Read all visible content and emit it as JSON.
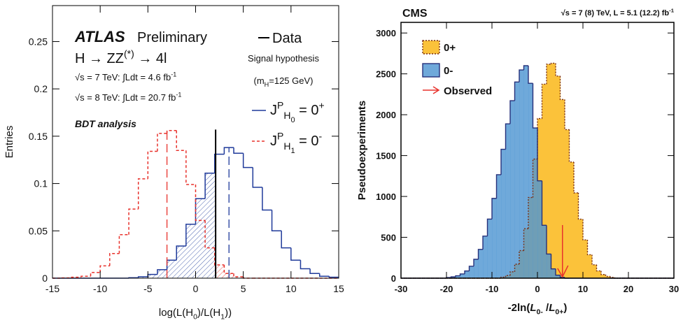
{
  "chart_data": [
    {
      "type": "histogram",
      "ylabel": "Entries",
      "xlabel": [
        {
          "text": "log(L(H"
        },
        {
          "text": "0",
          "pos": "sub"
        },
        {
          "text": ")/L(H"
        },
        {
          "text": "1",
          "pos": "sub"
        },
        {
          "text": "))"
        }
      ],
      "xlim": [
        -15,
        15
      ],
      "xticks": [
        -15,
        -10,
        -5,
        0,
        5,
        10,
        15
      ],
      "ylim": [
        0,
        0.288
      ],
      "yticks": [
        0,
        0.05,
        0.1,
        0.15,
        0.2,
        0.25
      ],
      "bins": [
        -15,
        -14,
        -13,
        -12,
        -11,
        -10,
        -9,
        -8,
        -7,
        -6,
        -5,
        -4,
        -3,
        -2,
        -1,
        0,
        1,
        2,
        3,
        4,
        5,
        6,
        7,
        8,
        9,
        10,
        11,
        12,
        13,
        14,
        15
      ],
      "series": [
        {
          "name": [
            {
              "text": "J"
            },
            {
              "text": "P",
              "pos": "sup"
            },
            {
              "text": "H",
              "pos": "sub"
            },
            {
              "text": "0",
              "pos": "subsub"
            },
            {
              "text": " = 0"
            },
            {
              "text": "+",
              "pos": "sup"
            }
          ],
          "color": "#1f3a9a",
          "dash": false,
          "hatch": "left",
          "median": 3.5,
          "values": [
            0,
            0,
            0,
            0,
            0,
            0,
            0,
            0,
            0.0005,
            0.0015,
            0.004,
            0.009,
            0.019,
            0.034,
            0.057,
            0.084,
            0.111,
            0.131,
            0.138,
            0.132,
            0.117,
            0.096,
            0.072,
            0.05,
            0.032,
            0.019,
            0.01,
            0.005,
            0.002,
            0.001
          ]
        },
        {
          "name": [
            {
              "text": "J"
            },
            {
              "text": "P",
              "pos": "sup"
            },
            {
              "text": "H",
              "pos": "sub"
            },
            {
              "text": "1",
              "pos": "subsub"
            },
            {
              "text": " = 0"
            },
            {
              "text": "-",
              "pos": "sup"
            }
          ],
          "color": "#e8322c",
          "dash": true,
          "hatch": "right",
          "median": -3.0,
          "values": [
            0,
            0.0003,
            0.001,
            0.002,
            0.006,
            0.013,
            0.026,
            0.046,
            0.073,
            0.105,
            0.134,
            0.153,
            0.156,
            0.135,
            0.099,
            0.061,
            0.032,
            0.014,
            0.005,
            0.0015,
            0,
            0,
            0,
            0,
            0,
            0,
            0,
            0,
            0,
            0
          ]
        }
      ],
      "observed": {
        "label": "Data",
        "x": 2.1,
        "height": 0.157,
        "color": "#000000"
      },
      "annotations": [
        [
          {
            "text": "ATLAS",
            "pos": "bolditalic"
          }
        ],
        [
          {
            "text": "Preliminary"
          }
        ],
        [
          {
            "text": "H → ZZ"
          },
          {
            "text": "(*)",
            "pos": "sup"
          },
          {
            "text": " → 4l"
          }
        ],
        [
          {
            "text": "√s = 7 TeV: ∫Ldt = 4.6 fb"
          },
          {
            "text": "-1",
            "pos": "sup"
          }
        ],
        [
          {
            "text": "√s = 8 TeV: ∫Ldt = 20.7 fb"
          },
          {
            "text": "-1",
            "pos": "sup"
          }
        ],
        [
          {
            "text": "BDT analysis",
            "pos": "bolditalic"
          }
        ],
        [
          {
            "text": "Signal hypothesis"
          }
        ],
        [
          {
            "text": "(m"
          },
          {
            "text": "H",
            "pos": "sub"
          },
          {
            "text": "=125 GeV)"
          }
        ]
      ]
    },
    {
      "type": "histogram",
      "ylabel": "Pseudoexperiments",
      "xlabel": [
        {
          "text": "-2ln("
        },
        {
          "text": "L",
          "pos": "italic"
        },
        {
          "text": "0-",
          "pos": "sub"
        },
        {
          "text": " /"
        },
        {
          "text": "L",
          "pos": "italic"
        },
        {
          "text": "0+",
          "pos": "sub"
        },
        {
          "text": ")"
        }
      ],
      "xlim": [
        -30,
        30
      ],
      "xticks": [
        -30,
        -20,
        -10,
        0,
        10,
        20,
        30
      ],
      "ylim": [
        0,
        3130
      ],
      "yticks": [
        0,
        500,
        1000,
        1500,
        2000,
        2500,
        3000
      ],
      "bins": [
        -30,
        -29,
        -28,
        -27,
        -26,
        -25,
        -24,
        -23,
        -22,
        -21,
        -20,
        -19,
        -18,
        -17,
        -16,
        -15,
        -14,
        -13,
        -12,
        -11,
        -10,
        -9,
        -8,
        -7,
        -6,
        -5,
        -4,
        -3,
        -2,
        -1,
        0,
        1,
        2,
        3,
        4,
        5,
        6,
        7,
        8,
        9,
        10,
        11,
        12,
        13,
        14,
        15,
        16,
        17,
        18,
        19,
        20,
        21,
        22,
        23,
        24,
        25,
        26,
        27,
        28,
        29,
        30
      ],
      "series": [
        {
          "name": [
            {
              "text": "0+"
            }
          ],
          "color": "#7a2e12",
          "fill": "#fbc23a",
          "opacity": 1,
          "dash": true,
          "values": [
            0,
            0,
            0,
            0,
            0,
            0,
            0,
            0,
            0,
            0,
            0,
            0,
            0,
            0,
            0,
            0,
            0,
            0,
            0,
            0,
            0,
            0,
            12,
            32,
            78,
            171,
            337,
            606,
            987,
            1457,
            1953,
            2374,
            2618,
            2630,
            2473,
            2186,
            1818,
            1421,
            1044,
            722,
            469,
            287,
            164,
            89,
            45,
            22,
            10,
            0,
            0,
            0,
            0,
            0,
            0,
            0,
            0,
            0,
            0,
            0,
            0,
            0
          ]
        },
        {
          "name": [
            {
              "text": "0-"
            }
          ],
          "color": "#26307a",
          "fill": "#4f96d2",
          "opacity": 0.82,
          "dash": false,
          "values": [
            0,
            0,
            0,
            0,
            0,
            0,
            0,
            0,
            0,
            0,
            8,
            16,
            29,
            52,
            88,
            146,
            231,
            352,
            515,
            723,
            976,
            1266,
            1577,
            1888,
            2172,
            2400,
            2548,
            2600,
            2384,
            1838,
            1191,
            647,
            296,
            114,
            37,
            10,
            0,
            0,
            0,
            0,
            0,
            0,
            0,
            0,
            0,
            0,
            0,
            0,
            0,
            0,
            0,
            0,
            0,
            0,
            0,
            0,
            0,
            0,
            0,
            0
          ]
        }
      ],
      "observed": {
        "label": "Observed",
        "x": 5.5,
        "height": 650,
        "color": "#e8322c"
      },
      "annotations": [
        [
          {
            "text": "CMS"
          }
        ],
        [
          {
            "text": "√s = 7 (8) TeV, L = 5.1 (12.2) fb"
          },
          {
            "text": "-1",
            "pos": "sup"
          }
        ]
      ]
    }
  ]
}
